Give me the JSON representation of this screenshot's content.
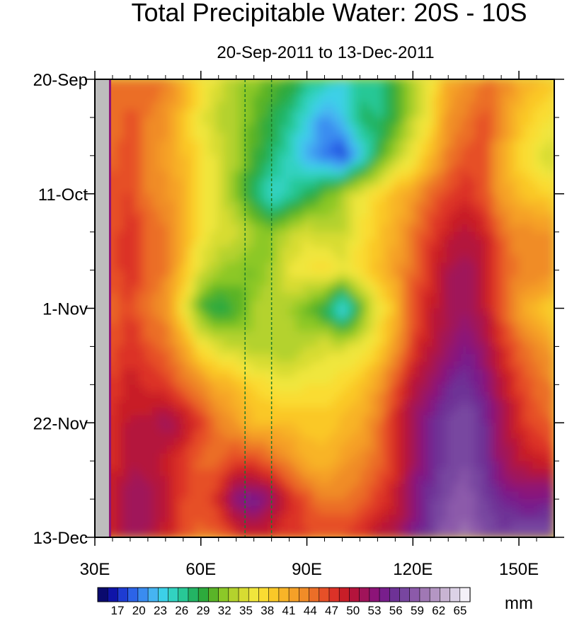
{
  "chart_data": {
    "type": "heatmap",
    "title": "Total Precipitable Water: 20S - 10S",
    "subtitle": "20-Sep-2011 to 13-Dec-2011",
    "xlabel": "",
    "ylabel": "",
    "x_range": [
      "30E",
      "160E"
    ],
    "y_range": [
      "20-Sep-2011",
      "13-Dec-2011"
    ],
    "x_ticks": [
      {
        "value": 30,
        "label": "30E"
      },
      {
        "value": 60,
        "label": "60E"
      },
      {
        "value": 90,
        "label": "90E"
      },
      {
        "value": 120,
        "label": "120E"
      },
      {
        "value": 150,
        "label": "150E"
      }
    ],
    "x_minor_ticks": [
      35,
      40,
      45,
      50,
      55,
      65,
      70,
      75,
      80,
      85,
      95,
      100,
      105,
      110,
      115,
      125,
      130,
      135,
      140,
      145,
      155
    ],
    "y_ticks": [
      {
        "day": 0,
        "label": "20-Sep"
      },
      {
        "day": 21,
        "label": "11-Oct"
      },
      {
        "day": 42,
        "label": "1-Nov"
      },
      {
        "day": 63,
        "label": "22-Nov"
      },
      {
        "day": 84,
        "label": "13-Dec"
      }
    ],
    "y_minor_ticks_day": [
      7,
      14,
      28,
      35,
      49,
      56,
      70,
      77
    ],
    "reference_lines_lon": [
      72.5,
      80
    ],
    "land_mask_lon": [
      30,
      34
    ],
    "colorbar": {
      "unit": "mm",
      "labels": [
        17,
        20,
        23,
        26,
        29,
        32,
        35,
        38,
        41,
        44,
        47,
        50,
        53,
        56,
        59,
        62,
        65
      ],
      "colors": [
        "#0a0a6e",
        "#0f14a8",
        "#1e3cd2",
        "#2c64e8",
        "#3a8cf0",
        "#46b4f2",
        "#3cd0e8",
        "#32d2c0",
        "#28c896",
        "#23b464",
        "#2daa3c",
        "#5ab428",
        "#8cc828",
        "#b4d22d",
        "#d7dc32",
        "#f0e63c",
        "#fadc32",
        "#fac828",
        "#f8b428",
        "#f5a028",
        "#f08c28",
        "#eb6e28",
        "#e65028",
        "#dc3228",
        "#c81e28",
        "#b4143c",
        "#a0145a",
        "#8c1478",
        "#781e8c",
        "#6e3296",
        "#7846a0",
        "#8c5aaa",
        "#a078b4",
        "#b496c3",
        "#c8b4d2",
        "#dcd2e6",
        "#f4f0f8"
      ]
    },
    "field_description_values": {
      "lon_nodes": [
        30,
        35,
        40,
        45,
        50,
        55,
        60,
        65,
        70,
        75,
        80,
        85,
        90,
        95,
        100,
        105,
        110,
        115,
        120,
        125,
        130,
        135,
        140,
        145,
        150,
        155,
        160
      ],
      "day_nodes": [
        0,
        7,
        14,
        21,
        28,
        35,
        42,
        49,
        56,
        63,
        70,
        77,
        84
      ],
      "grid_mm": [
        [
          45,
          44,
          45,
          45,
          44,
          41,
          38,
          35,
          33,
          32,
          31,
          30,
          27,
          26,
          24,
          26,
          27,
          30,
          33,
          37,
          41,
          43,
          44,
          44,
          41,
          40,
          39
        ],
        [
          45,
          44,
          46,
          44,
          43,
          40,
          36,
          34,
          33,
          31,
          29,
          27,
          24,
          21,
          23,
          28,
          27,
          30,
          34,
          37,
          43,
          44,
          46,
          43,
          40,
          38,
          37
        ],
        [
          46,
          45,
          47,
          44,
          42,
          40,
          37,
          35,
          33,
          30,
          28,
          25,
          22,
          20,
          18,
          23,
          29,
          33,
          36,
          40,
          44,
          46,
          46,
          42,
          38,
          36,
          34
        ],
        [
          47,
          46,
          47,
          44,
          43,
          41,
          37,
          35,
          32,
          28,
          24,
          26,
          28,
          31,
          33,
          36,
          38,
          40,
          42,
          45,
          47,
          48,
          46,
          42,
          40,
          39,
          38
        ],
        [
          47,
          46,
          48,
          45,
          44,
          41,
          37,
          35,
          35,
          33,
          32,
          34,
          35,
          34,
          34,
          37,
          39,
          41,
          44,
          47,
          49,
          50,
          49,
          45,
          43,
          43,
          43
        ],
        [
          47,
          46,
          48,
          45,
          44,
          40,
          35,
          33,
          32,
          31,
          33,
          36,
          37,
          38,
          36,
          38,
          40,
          42,
          45,
          48,
          51,
          52,
          50,
          46,
          44,
          44,
          44
        ],
        [
          46,
          45,
          47,
          44,
          43,
          37,
          30,
          28,
          30,
          33,
          34,
          33,
          31,
          29,
          23,
          30,
          36,
          40,
          46,
          49,
          51,
          52,
          50,
          46,
          42,
          40,
          38
        ],
        [
          47,
          46,
          48,
          46,
          45,
          42,
          37,
          35,
          34,
          33,
          33,
          33,
          34,
          35,
          35,
          36,
          38,
          42,
          47,
          50,
          52,
          54,
          52,
          48,
          45,
          43,
          42
        ],
        [
          48,
          47,
          49,
          48,
          47,
          45,
          43,
          41,
          40,
          38,
          37,
          36,
          37,
          37,
          38,
          39,
          42,
          46,
          50,
          52,
          55,
          56,
          54,
          50,
          47,
          45,
          44
        ],
        [
          49,
          48,
          50,
          50,
          52,
          50,
          47,
          44,
          42,
          40,
          40,
          40,
          39,
          39,
          40,
          41,
          44,
          48,
          52,
          55,
          57,
          58,
          56,
          52,
          48,
          46,
          45
        ],
        [
          49,
          48,
          51,
          50,
          49,
          47,
          45,
          45,
          47,
          47,
          45,
          43,
          41,
          40,
          42,
          43,
          45,
          48,
          52,
          55,
          57,
          58,
          56,
          52,
          50,
          49,
          48
        ],
        [
          50,
          49,
          52,
          52,
          50,
          47,
          46,
          48,
          54,
          55,
          52,
          48,
          46,
          44,
          44,
          45,
          47,
          49,
          53,
          56,
          58,
          59,
          57,
          55,
          54,
          54,
          55
        ],
        [
          50,
          49,
          52,
          51,
          49,
          46,
          45,
          45,
          47,
          49,
          48,
          47,
          47,
          47,
          47,
          48,
          50,
          51,
          54,
          57,
          59,
          60,
          58,
          57,
          58,
          58,
          58
        ]
      ]
    }
  }
}
